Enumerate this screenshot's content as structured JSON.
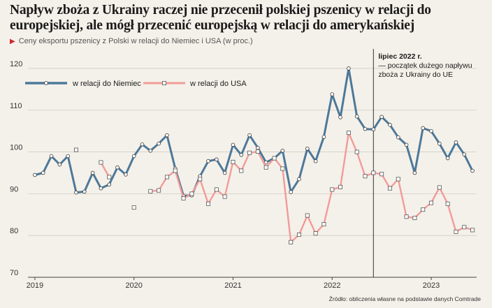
{
  "title": "Napływ zboża z Ukrainy raczej nie przecenił polskiej pszenicy w relacji do europejskiej, ale mógł przecenić europejską w relacji do amerykańskiej",
  "subtitle": "Ceny eksportu pszenicy z Polski w relacji do Niemiec i USA (w proc.)",
  "source": "Źródło: obliczenia własne na podstawie danych Comtrade",
  "colors": {
    "germany": "#4d7899",
    "usa": "#f29b99",
    "background": "#f4f1ea",
    "marker": "#d0262b"
  },
  "chart_data": {
    "type": "line",
    "x": [
      "2019-01",
      "2019-02",
      "2019-03",
      "2019-04",
      "2019-05",
      "2019-06",
      "2019-07",
      "2019-08",
      "2019-09",
      "2019-10",
      "2019-11",
      "2019-12",
      "2020-01",
      "2020-02",
      "2020-03",
      "2020-04",
      "2020-05",
      "2020-06",
      "2020-07",
      "2020-08",
      "2020-09",
      "2020-10",
      "2020-11",
      "2020-12",
      "2021-01",
      "2021-02",
      "2021-03",
      "2021-04",
      "2021-05",
      "2021-06",
      "2021-07",
      "2021-08",
      "2021-09",
      "2021-10",
      "2021-11",
      "2021-12",
      "2022-01",
      "2022-02",
      "2022-03",
      "2022-04",
      "2022-05",
      "2022-06",
      "2022-07",
      "2022-08",
      "2022-09",
      "2022-10",
      "2022-11",
      "2022-12",
      "2023-01",
      "2023-02",
      "2023-03",
      "2023-04",
      "2023-05",
      "2023-06"
    ],
    "x_ticks": [
      "2019",
      "2020",
      "2021",
      "2022",
      "2023"
    ],
    "ylim": [
      70,
      122
    ],
    "y_ticks": [
      70,
      80,
      90,
      100,
      110,
      120
    ],
    "series": [
      {
        "name": "w relacji do Niemiec",
        "values": [
          94.5,
          95,
          99,
          97,
          99,
          90.3,
          90.5,
          95,
          91.3,
          92.2,
          96.3,
          94.6,
          99,
          101.8,
          100.3,
          102,
          104,
          96,
          89.5,
          89.6,
          94.2,
          97.8,
          98.2,
          95,
          101.7,
          99.3,
          104,
          101,
          97.5,
          98.5,
          100.3,
          90.4,
          93.5,
          100.8,
          97.8,
          103.6,
          113.8,
          108.3,
          120,
          108.5,
          105.5,
          105.4,
          108.4,
          106.5,
          103.5,
          101.7,
          95,
          105.7,
          105,
          102,
          98.5,
          102.3,
          99.4,
          95.5
        ]
      },
      {
        "name": "w relacji do USA",
        "values": [
          null,
          null,
          null,
          null,
          null,
          100.5,
          null,
          null,
          97.5,
          94,
          null,
          null,
          86.7,
          null,
          90.6,
          90.8,
          94,
          95.5,
          88.9,
          90,
          93.5,
          87.6,
          91,
          89.3,
          97.6,
          95.5,
          99.8,
          100.1,
          96.3,
          98.5,
          96,
          78.4,
          80.2,
          84.8,
          80.5,
          82.7,
          91,
          91.6,
          104.6,
          100,
          94.2,
          95,
          94.7,
          91.3,
          93.5,
          84.5,
          84.2,
          86.2,
          87.8,
          91.5,
          87.6,
          80.9,
          82,
          81.3
        ]
      }
    ],
    "annotation": {
      "x": "2022-06",
      "lines": [
        "lipiec 2022 r.",
        "— początek dużego napływu",
        "zboża z Ukrainy do UE"
      ]
    }
  }
}
